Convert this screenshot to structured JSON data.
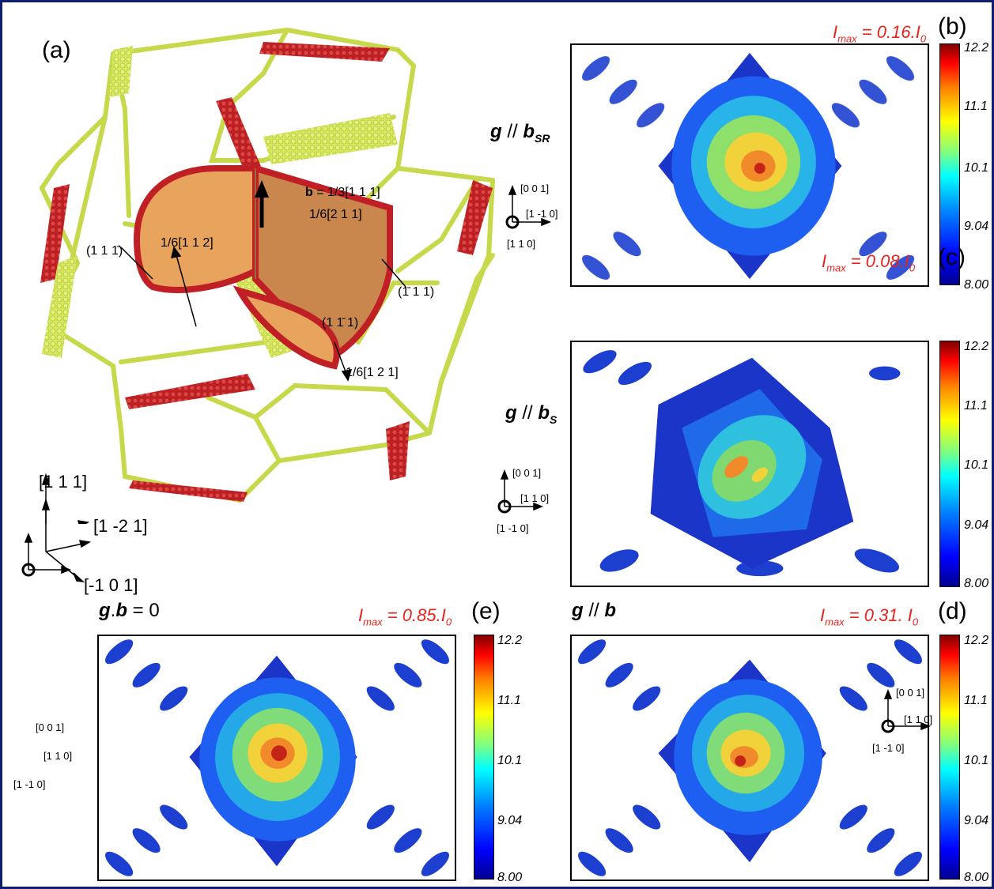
{
  "panel_a": {
    "letter": "(a)",
    "annotations": {
      "burgers": "b = 1/3[1 1 1]",
      "burgers_bold": "b",
      "burgers_rest": " = 1/3[1 1 1]",
      "p112": "1/6[1 1 2]",
      "p211": "1/6[2 1 1]",
      "p121": "1/6[1 2 1]",
      "plane1": "(1 1 1̄)",
      "plane2": "(1̄ 1 1)",
      "plane3": "(1 1̄ 1)"
    },
    "axes": {
      "up": "[1 1 1]",
      "right": "[1 -2 1]",
      "diag": "[-1 0 1]"
    }
  },
  "panel_b": {
    "letter": "(b)",
    "imax": {
      "symbol": "I",
      "sub": "max",
      "eq": " = 0.16.I",
      "sub0": "0"
    },
    "g_label": {
      "g": "g",
      "sep": " // ",
      "b": "b",
      "sub": "SR"
    },
    "axes": {
      "up": "[0 0 1]",
      "right": "[1 -1 0]",
      "out": "[1 1 0]"
    }
  },
  "panel_c": {
    "letter": "(c)",
    "imax": {
      "symbol": "I",
      "sub": "max",
      "eq": " =  0.08.I",
      "sub0": "0"
    },
    "g_label": {
      "g": "g",
      "sep": " // ",
      "b": "b",
      "sub": "S"
    },
    "axes": {
      "up": "[0 0 1]",
      "right": "[1 1 0]",
      "out": "[1 -1 0]"
    }
  },
  "panel_d": {
    "letter": "(d)",
    "imax": {
      "symbol": "I",
      "sub": "max",
      "eq": " =  0.31. I",
      "sub0": "0"
    },
    "g_label": {
      "g": "g",
      "sep": " // ",
      "b": "b",
      "sub": ""
    },
    "axes": {
      "up": "[0 0 1]",
      "right": "[1 1 0]",
      "out": "[1 -1 0]"
    }
  },
  "panel_e": {
    "letter": "(e)",
    "imax": {
      "symbol": "I",
      "sub": "max",
      "eq": " = 0.85.I",
      "sub0": "0"
    },
    "g_label": {
      "g": "g",
      "sep": ".",
      "b": "b",
      "tail": " = 0"
    },
    "axes": {
      "up": "[0 0 1]",
      "right": "[1 1 0]",
      "out": "[1 -1 0]"
    }
  },
  "colorbar": {
    "ticks": [
      "12.2",
      "11.1",
      "10.1",
      "9.04",
      "8.00"
    ],
    "colors": [
      "#00008f",
      "#0000ff",
      "#00ffff",
      "#ffff00",
      "#ff0000",
      "#800000"
    ]
  },
  "colors": {
    "border": "#0d1f6e",
    "imax_text": "#e8231e",
    "frame_bead": "#d6e85a",
    "fault_red": "#d4262b",
    "fault_orange": "#e8a35c"
  }
}
